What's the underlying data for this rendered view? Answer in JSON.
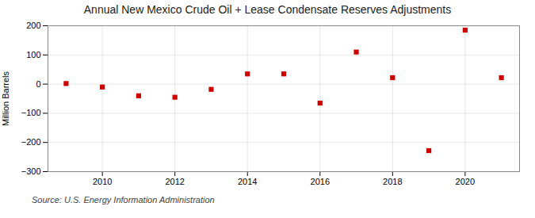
{
  "chart_data": {
    "type": "scatter",
    "title": "Annual New Mexico Crude Oil + Lease Condensate Reserves Adjustments",
    "ylabel": "Million Barrels",
    "source": "Source: U.S. Energy Information Administration",
    "x": [
      2009,
      2010,
      2011,
      2012,
      2013,
      2014,
      2015,
      2016,
      2017,
      2018,
      2019,
      2020,
      2021
    ],
    "values": [
      2,
      -10,
      -40,
      -45,
      -18,
      35,
      35,
      -65,
      110,
      22,
      -228,
      185,
      22
    ],
    "color": "#cc0000",
    "marker": "square",
    "ylim": [
      -300,
      200
    ],
    "yticks": [
      -300,
      -200,
      -100,
      0,
      100,
      200
    ],
    "xlim": [
      2008.5,
      2021.5
    ],
    "xticks": [
      2010,
      2012,
      2014,
      2016,
      2018,
      2020
    ],
    "grid": true
  }
}
